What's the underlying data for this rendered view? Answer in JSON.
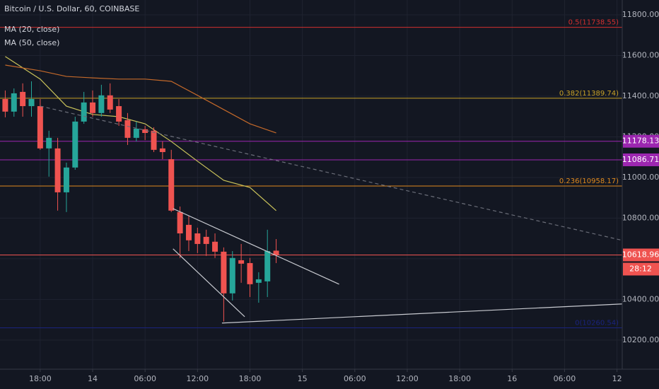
{
  "chart_data": {
    "type": "candlestick",
    "title": "Bitcoin / U.S. Dollar, 60, COINBASE",
    "x": [
      14,
      15,
      16,
      17,
      18,
      19,
      20,
      21,
      22,
      23,
      24,
      25,
      26,
      27,
      28,
      29,
      30,
      31,
      32,
      33,
      34,
      35,
      36,
      37,
      38,
      39,
      40,
      41,
      42,
      43,
      44,
      45
    ],
    "open": [
      11386,
      11324,
      11421,
      11351,
      11351,
      11143,
      11143,
      10927,
      11049,
      11275,
      11369,
      11317,
      11404,
      11351,
      11282,
      11195,
      11237,
      11230,
      11143,
      11090,
      10830,
      10767,
      10725,
      10708,
      10684,
      10635,
      10430,
      10593,
      10579,
      10482,
      10489,
      10640
    ],
    "high": [
      11428,
      11438,
      11463,
      11473,
      11386,
      11230,
      11195,
      11073,
      11299,
      11421,
      11428,
      11456,
      11463,
      11386,
      11317,
      11275,
      11254,
      11247,
      11177,
      11136,
      10857,
      10812,
      10753,
      10743,
      10725,
      10656,
      10638,
      10673,
      10604,
      10534,
      10743,
      10697
    ],
    "low": [
      11296,
      11299,
      11299,
      11299,
      11136,
      11004,
      10837,
      10830,
      11038,
      11264,
      11299,
      11299,
      11317,
      11254,
      11160,
      11177,
      11184,
      11125,
      11090,
      10830,
      10604,
      10638,
      10628,
      10614,
      10604,
      10291,
      10395,
      10482,
      10412,
      10384,
      10412,
      10579
    ],
    "close": [
      11324,
      11414,
      11351,
      11386,
      11143,
      11195,
      10927,
      11049,
      11275,
      11369,
      11317,
      11404,
      11334,
      11275,
      11195,
      11240,
      11219,
      11136,
      11125,
      10837,
      10725,
      10691,
      10673,
      10673,
      10635,
      10430,
      10604,
      10576,
      10475,
      10499,
      10638,
      10618.96
    ],
    "up_color": "#26a69a",
    "down_color": "#ef5350",
    "series": [
      {
        "name": "MA (20, close)",
        "color": "#c9c25a",
        "x": [
          14,
          18,
          21,
          24,
          27,
          30,
          33,
          36,
          39,
          42,
          45
        ],
        "values": [
          11595,
          11484,
          11351,
          11310,
          11299,
          11264,
          11177,
          11080,
          10986,
          10951,
          10837
        ]
      },
      {
        "name": "MA (50, close)",
        "color": "#c4692a",
        "x": [
          14,
          18,
          21,
          24,
          27,
          30,
          33,
          36,
          39,
          42,
          45
        ],
        "values": [
          11553,
          11525,
          11497,
          11490,
          11484,
          11484,
          11473,
          11404,
          11334,
          11264,
          11219
        ]
      }
    ],
    "xlim": [
      13.4,
      84.6
    ],
    "xticks": [
      {
        "value": 18,
        "label": "18:00"
      },
      {
        "value": 24,
        "label": "14"
      },
      {
        "value": 30,
        "label": "06:00"
      },
      {
        "value": 36,
        "label": "12:00"
      },
      {
        "value": 42,
        "label": "18:00"
      },
      {
        "value": 48,
        "label": "15"
      },
      {
        "value": 54,
        "label": "06:00"
      },
      {
        "value": 60,
        "label": "12:00"
      },
      {
        "value": 66,
        "label": "18:00"
      },
      {
        "value": 72,
        "label": "16"
      },
      {
        "value": 78,
        "label": "06:00"
      },
      {
        "value": 84,
        "label": "12"
      }
    ],
    "ylim": [
      10057,
      11873
    ],
    "yticks": [
      {
        "value": 10200,
        "label": "10200.00"
      },
      {
        "value": 10400,
        "label": "10400.00"
      },
      {
        "value": 10600,
        "label": "10600.00"
      },
      {
        "value": 10800,
        "label": "10800.00"
      },
      {
        "value": 11000,
        "label": "11000.00"
      },
      {
        "value": 11200,
        "label": "11200.00"
      },
      {
        "value": 11400,
        "label": "11400.00"
      },
      {
        "value": 11600,
        "label": "11600.00"
      },
      {
        "value": 11800,
        "label": "11800.00"
      }
    ],
    "grid": true,
    "levels": [
      {
        "value": 11738.55,
        "label": "0.5(11738.55)",
        "color": "#d32f2f",
        "label_place": "plot"
      },
      {
        "value": 11389.74,
        "label": "0.382(11389.74)",
        "color": "#c9a227",
        "label_place": "plot"
      },
      {
        "value": 10958.17,
        "label": "0.236(10958.17)",
        "color": "#e08a1e",
        "label_place": "plot"
      },
      {
        "value": 10260.54,
        "label": "0(10260.54)",
        "color": "#1a237e",
        "label_place": "plot"
      },
      {
        "value": 11178.13,
        "label": "11178.13",
        "color": "#9c27b0",
        "label_place": "axis"
      },
      {
        "value": 11086.71,
        "label": "11086.71",
        "color": "#9c27b0",
        "label_place": "axis"
      },
      {
        "value": 10618.96,
        "label": "10618.96",
        "color": "#ef5350",
        "label_place": "axis"
      }
    ],
    "timer": "28:12",
    "trendlines": [
      {
        "points": [
          [
            18,
            11351
          ],
          [
            84.6,
            10691
          ]
        ],
        "color": "#6a6d78",
        "dashed": true
      },
      {
        "points": [
          [
            33.2,
            10847
          ],
          [
            52.2,
            10475
          ]
        ],
        "color": "#c8cad0",
        "dashed": false
      },
      {
        "points": [
          [
            33.2,
            10649
          ],
          [
            41.4,
            10315
          ]
        ],
        "color": "#c8cad0",
        "dashed": false
      },
      {
        "points": [
          [
            38.8,
            10284
          ],
          [
            84.6,
            10378
          ]
        ],
        "color": "#c8cad0",
        "dashed": false
      }
    ]
  }
}
